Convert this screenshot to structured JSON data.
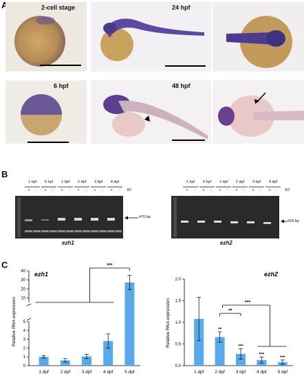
{
  "panel_a": {
    "letter": "A",
    "stages": {
      "s2cell": "2-cell stage",
      "h24": "24 hpf",
      "h6": "6 hpf",
      "h48": "48 hpf"
    }
  },
  "panel_b": {
    "letter": "B",
    "rt_label": "RT",
    "lane_groups": [
      "1 hpf",
      "6 hpf",
      "1 dpf",
      "2 dpf",
      "3 dpf",
      "4 dpf"
    ],
    "plus": "+",
    "minus": "-",
    "ezh1": {
      "gene": "ezh1",
      "band": "470 bp"
    },
    "ezh2": {
      "gene": "ezh2",
      "band": "328 bp"
    }
  },
  "panel_c": {
    "letter": "C"
  },
  "chart_data": [
    {
      "type": "bar",
      "title": "ezh1",
      "ylabel": "Relative RNA expression",
      "categories": [
        "1 dpf",
        "2 dpf",
        "3 dpf",
        "4 dpf",
        "5 dpf"
      ],
      "values": [
        1.0,
        0.6,
        1.05,
        2.8,
        27
      ],
      "errors": [
        0.15,
        0.2,
        0.25,
        0.8,
        8
      ],
      "y_ticks_lower": [
        "0",
        "1",
        "2",
        "3",
        "4",
        "5"
      ],
      "y_ticks_upper": [
        "10",
        "20",
        "30",
        "40"
      ],
      "ylim_lower": [
        0,
        5
      ],
      "ylim_upper": [
        5,
        40
      ],
      "broken_axis": true,
      "significance": "***",
      "color": "#5aa9ea"
    },
    {
      "type": "bar",
      "title": "ezh2",
      "ylabel": "Relative RNA expression",
      "categories": [
        "1 dpf",
        "2 dpf",
        "3 dpf",
        "4 dpf",
        "5 dpf"
      ],
      "values": [
        1.08,
        0.66,
        0.27,
        0.13,
        0.08
      ],
      "errors": [
        0.5,
        0.12,
        0.12,
        0.07,
        0.05
      ],
      "bar_stars": [
        "",
        "**",
        "***",
        "***",
        "***"
      ],
      "y_ticks": [
        "0.0",
        "0.5",
        "1.0",
        "1.5",
        "2.0"
      ],
      "ylim": [
        0,
        2.0
      ],
      "significance_a": "**",
      "significance_b": "***",
      "color": "#5aa9ea"
    }
  ]
}
